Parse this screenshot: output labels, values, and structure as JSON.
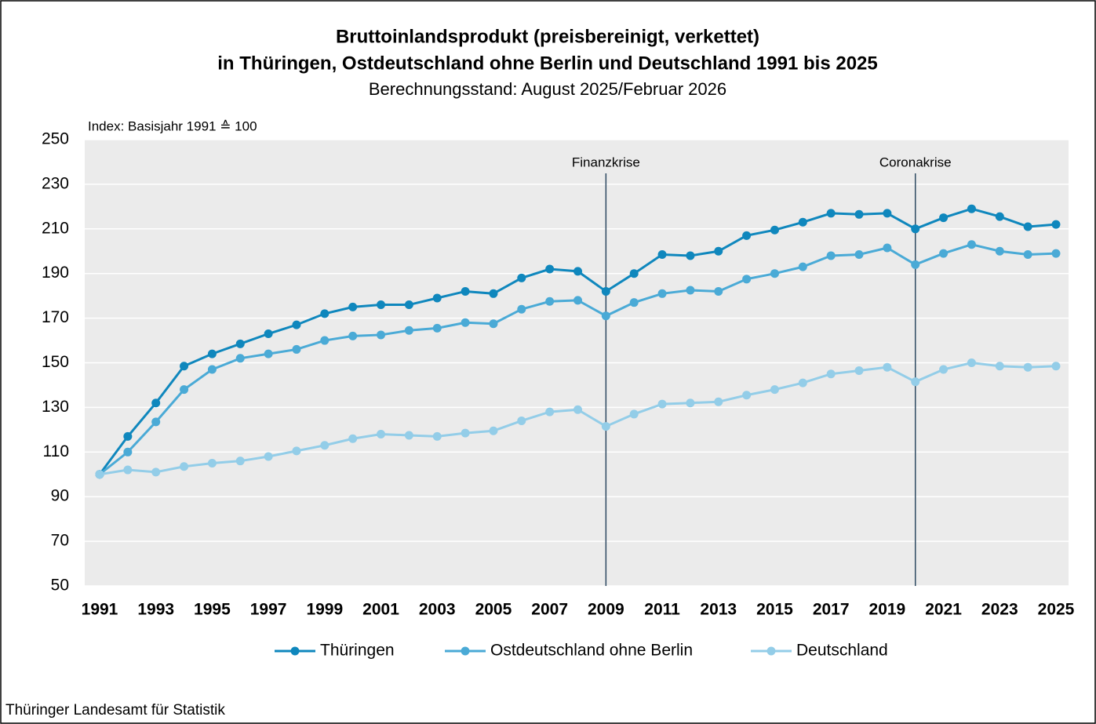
{
  "chart_data": {
    "type": "line",
    "title": [
      "Bruttoinlandsprodukt (preisbereinigt, verkettet)",
      "in Thüringen, Ostdeutschland ohne Berlin und Deutschland 1991 bis 2025"
    ],
    "subtitle": "Berechnungsstand: August 2025/Februar 2026",
    "y_label": "Index: Basisjahr 1991 ≙ 100",
    "source": "Thüringer Landesamt für Statistik",
    "x": [
      1991,
      1992,
      1993,
      1994,
      1995,
      1996,
      1997,
      1998,
      1999,
      2000,
      2001,
      2002,
      2003,
      2004,
      2005,
      2006,
      2007,
      2008,
      2009,
      2010,
      2011,
      2012,
      2013,
      2014,
      2015,
      2016,
      2017,
      2018,
      2019,
      2020,
      2021,
      2022,
      2023,
      2024,
      2025
    ],
    "xlim": [
      1991,
      2025
    ],
    "xticks": [
      1991,
      1993,
      1995,
      1997,
      1999,
      2001,
      2003,
      2005,
      2007,
      2009,
      2011,
      2013,
      2015,
      2017,
      2019,
      2021,
      2023,
      2025
    ],
    "ylim": [
      50,
      250
    ],
    "yticks": [
      50,
      70,
      90,
      110,
      130,
      150,
      170,
      190,
      210,
      230,
      250
    ],
    "grid": true,
    "legend": "bottom",
    "annotations": [
      {
        "text": "Finanzkrise",
        "x": 2009
      },
      {
        "text": "Coronakrise",
        "x": 2020
      }
    ],
    "series": [
      {
        "name": "Thüringen",
        "color": "#0f87bd",
        "values": [
          100,
          117,
          132,
          148.5,
          154,
          158.5,
          163,
          167,
          172,
          175,
          176,
          176,
          179,
          182,
          181,
          188,
          192,
          191,
          182,
          190,
          198.5,
          198,
          200,
          207,
          209.5,
          213,
          217,
          216.5,
          217,
          210,
          215,
          219,
          215.5,
          211,
          212
        ]
      },
      {
        "name": "Ostdeutschland ohne Berlin",
        "color": "#4aaad6",
        "values": [
          100,
          110,
          123.5,
          138,
          147,
          152,
          154,
          156,
          160,
          162,
          162.5,
          164.5,
          165.5,
          168,
          167.5,
          174,
          177.5,
          178,
          171,
          177,
          181,
          182.5,
          182,
          187.5,
          190,
          193,
          198,
          198.5,
          201.5,
          194,
          199,
          203,
          200,
          198.5,
          199
        ]
      },
      {
        "name": "Deutschland",
        "color": "#93cde8",
        "values": [
          100,
          102,
          101,
          103.5,
          105,
          106,
          108,
          110.5,
          113,
          116,
          118,
          117.5,
          117,
          118.5,
          119.5,
          124,
          128,
          129,
          121.5,
          127,
          131.5,
          132,
          132.5,
          135.5,
          138,
          141,
          145,
          146.5,
          148,
          141.5,
          147,
          150,
          148.5,
          148,
          148.5
        ]
      }
    ]
  }
}
